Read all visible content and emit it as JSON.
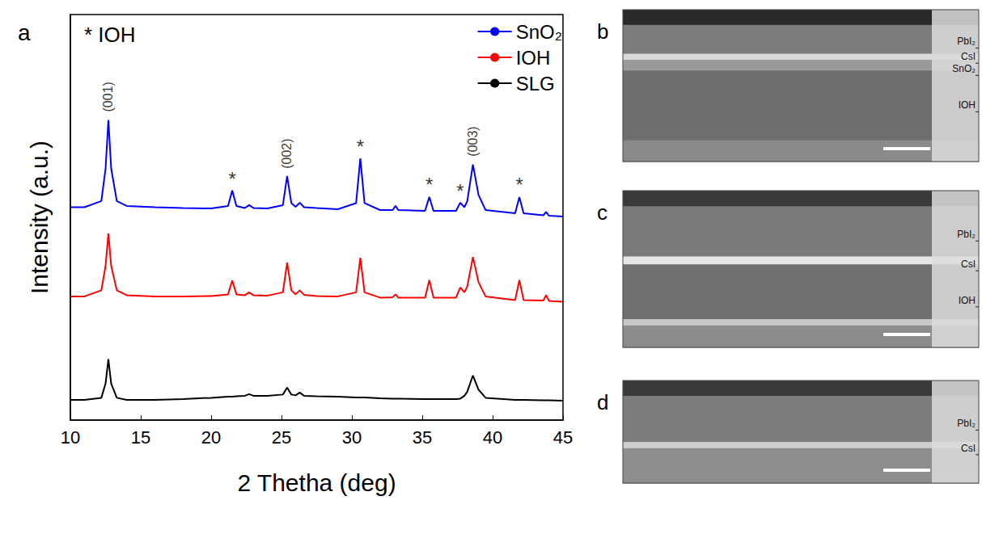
{
  "chart_data": {
    "type": "line",
    "panel": "a",
    "x_label": "2 Thetha (deg)",
    "y_label": "Intensity (a.u.)",
    "peak_legend": "* IOH",
    "legend": "top-right",
    "grid": false,
    "tick_labels": "x",
    "xlim": [
      10,
      45
    ],
    "xticks": [
      10,
      15,
      20,
      25,
      30,
      35,
      40,
      45
    ],
    "ylim": [
      0,
      100
    ],
    "x": [
      10,
      11,
      12.2,
      12.5,
      12.7,
      12.9,
      13.3,
      14,
      16,
      18,
      20,
      21.2,
      21.5,
      21.8,
      22.4,
      22.7,
      23,
      24,
      25.1,
      25.4,
      25.7,
      26,
      26.3,
      26.6,
      27.5,
      29,
      30.3,
      30.6,
      30.9,
      32,
      32.9,
      33.1,
      33.3,
      35.2,
      35.5,
      35.8,
      37.4,
      37.7,
      38,
      38.2,
      38.6,
      39,
      39.5,
      41.6,
      41.9,
      42.2,
      43.6,
      43.8,
      44,
      45
    ],
    "series": [
      {
        "name": "SnO₂",
        "color": "#0000ff",
        "values": [
          52.5,
          52.5,
          54,
          62,
          74,
          62,
          54,
          52.8,
          52.5,
          52.3,
          52.2,
          52.8,
          56.6,
          52.8,
          52.3,
          53,
          52.3,
          52.2,
          53,
          60.2,
          53.5,
          52.6,
          53.6,
          52.5,
          52.3,
          52,
          53.5,
          64.5,
          53.5,
          51.8,
          51.8,
          52.8,
          51.8,
          51.6,
          55,
          51.6,
          51.6,
          53.6,
          52.5,
          54,
          63,
          55.5,
          51.8,
          51,
          55,
          51,
          50.5,
          51.3,
          50.4,
          50.2
        ]
      },
      {
        "name": "IOH",
        "color": "#ff0000",
        "values": [
          30.5,
          30.5,
          32,
          38,
          46,
          38,
          32,
          30.8,
          30.5,
          30.5,
          30.6,
          31,
          34.4,
          31,
          30.8,
          31.5,
          30.8,
          30.7,
          31.5,
          38.8,
          32,
          31,
          32,
          30.9,
          30.6,
          30.5,
          31.5,
          40,
          31.5,
          30.2,
          30.3,
          31,
          30.2,
          30.2,
          34.5,
          30.2,
          30.2,
          32.7,
          31.5,
          33,
          40.2,
          34,
          30.5,
          29.6,
          34.5,
          29.6,
          29.5,
          30.8,
          29.4,
          29.2
        ]
      },
      {
        "name": "SLG",
        "color": "#000000",
        "values": [
          5,
          5,
          5.5,
          9,
          15,
          9,
          5.5,
          5,
          5,
          5.2,
          5.5,
          5.8,
          5.8,
          5.9,
          6,
          6.4,
          6,
          6,
          6.3,
          8,
          6.3,
          6.1,
          6.8,
          6,
          5.9,
          5.8,
          5.6,
          5.6,
          5.6,
          5.4,
          5.3,
          5.3,
          5.3,
          5.2,
          5.2,
          5.2,
          5.2,
          5.3,
          6,
          7,
          11,
          7.5,
          5.5,
          5,
          5,
          5,
          4.9,
          4.9,
          4.9,
          4.8
        ]
      }
    ],
    "annotations": [
      {
        "text": "(001)",
        "x": 12.7,
        "y": 76
      },
      {
        "text": "*",
        "x": 21.5,
        "y": 59.5
      },
      {
        "text": "(002)",
        "x": 25.4,
        "y": 62
      },
      {
        "text": "*",
        "x": 30.6,
        "y": 67.5
      },
      {
        "text": "*",
        "x": 35.5,
        "y": 58
      },
      {
        "text": "*",
        "x": 37.7,
        "y": 56.5
      },
      {
        "text": "(003)",
        "x": 38.6,
        "y": 65
      },
      {
        "text": "*",
        "x": 41.9,
        "y": 58
      }
    ]
  },
  "sem_panels": [
    {
      "panel": "b",
      "layers": [
        "PbI₂",
        "CsI",
        "SnO₂",
        "IOH"
      ]
    },
    {
      "panel": "c",
      "layers": [
        "PbI₂",
        "CsI",
        "IOH"
      ]
    },
    {
      "panel": "d",
      "layers": [
        "PbI₂",
        "CsI"
      ]
    }
  ]
}
